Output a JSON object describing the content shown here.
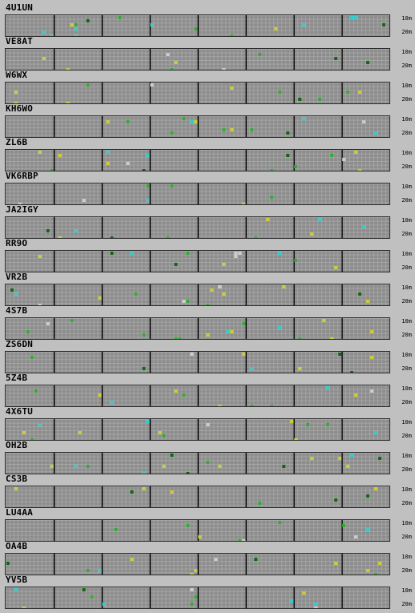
{
  "band_labels": {
    "top": "10m",
    "bottom": "20m"
  },
  "palette": {
    "background": "#c0c0c0",
    "grid": "#8c8c8c",
    "yellow": "#cccc33",
    "green": "#33aa33",
    "cyan": "#33cccc",
    "gray": "#cccccc",
    "dark_green": "#116611"
  },
  "stations": [
    {
      "call": "4U1UN"
    },
    {
      "call": "VE8AT"
    },
    {
      "call": "W6WX"
    },
    {
      "call": "KH6WO"
    },
    {
      "call": "ZL6B"
    },
    {
      "call": "VK6RBP"
    },
    {
      "call": "JA2IGY"
    },
    {
      "call": "RR9O"
    },
    {
      "call": "VR2B"
    },
    {
      "call": "4S7B"
    },
    {
      "call": "ZS6DN"
    },
    {
      "call": "5Z4B"
    },
    {
      "call": "4X6TU"
    },
    {
      "call": "OH2B"
    },
    {
      "call": "CS3B"
    },
    {
      "call": "LU4AA"
    },
    {
      "call": "OA4B"
    },
    {
      "call": "YV5B"
    }
  ]
}
